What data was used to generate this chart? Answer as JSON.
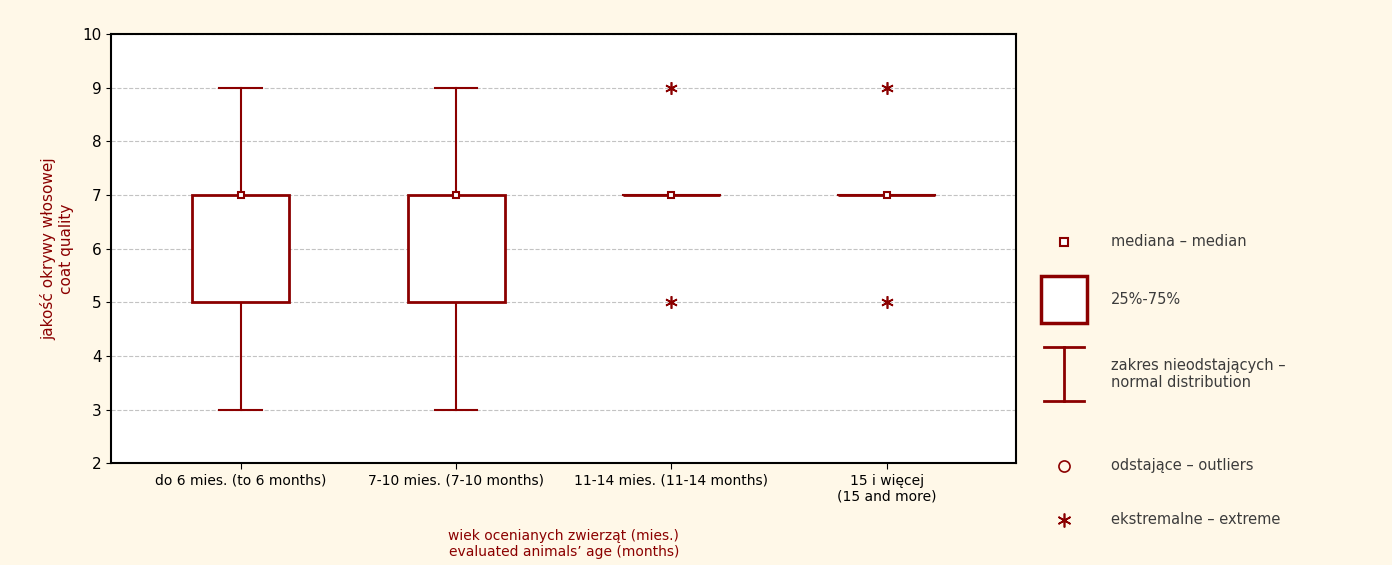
{
  "categories": [
    "do 6 mies. (to 6 months)",
    "7-10 mies. (7-10 months)",
    "11-14 mies. (11-14 months)",
    "15 i więcej\n(15 and more)"
  ],
  "boxes": [
    {
      "median": 7,
      "q1": 5,
      "q3": 7,
      "whisker_low": 3,
      "whisker_high": 9,
      "extremes": [],
      "outliers": []
    },
    {
      "median": 7,
      "q1": 5,
      "q3": 7,
      "whisker_low": 3,
      "whisker_high": 9,
      "extremes": [],
      "outliers": []
    },
    {
      "median": 7,
      "q1": 7,
      "q3": 7,
      "whisker_low": 7,
      "whisker_high": 7,
      "extremes": [
        5,
        9
      ],
      "outliers": []
    },
    {
      "median": 7,
      "q1": 7,
      "q3": 7,
      "whisker_low": 7,
      "whisker_high": 7,
      "extremes": [
        5,
        9
      ],
      "outliers": []
    }
  ],
  "ylim": [
    2,
    10
  ],
  "yticks": [
    2,
    3,
    4,
    5,
    6,
    7,
    8,
    9,
    10
  ],
  "ylabel_line1": "jakość okrywy włosowej",
  "ylabel_line2": "coat quality",
  "xlabel_line1": "wiek ocenianych zwierząt (mies.)",
  "xlabel_line2": "evaluated animals’ age (months)",
  "box_color": "#8B0000",
  "background_color": "#FFFFFF",
  "outer_background": "#FFF8E8",
  "legend_median_label": "mediana – median",
  "legend_box_label": "25%-75%",
  "legend_whisker_label": "zakres nieodstających –\nnormal distribution",
  "legend_outlier_label": "odstające – outliers",
  "legend_extreme_label": "ekstremalne – extreme",
  "box_width": 0.45,
  "grid_color": "#AAAAAA",
  "label_color": "#8B0000",
  "tick_label_color": "#000000",
  "positions": [
    1,
    2,
    3,
    4
  ]
}
